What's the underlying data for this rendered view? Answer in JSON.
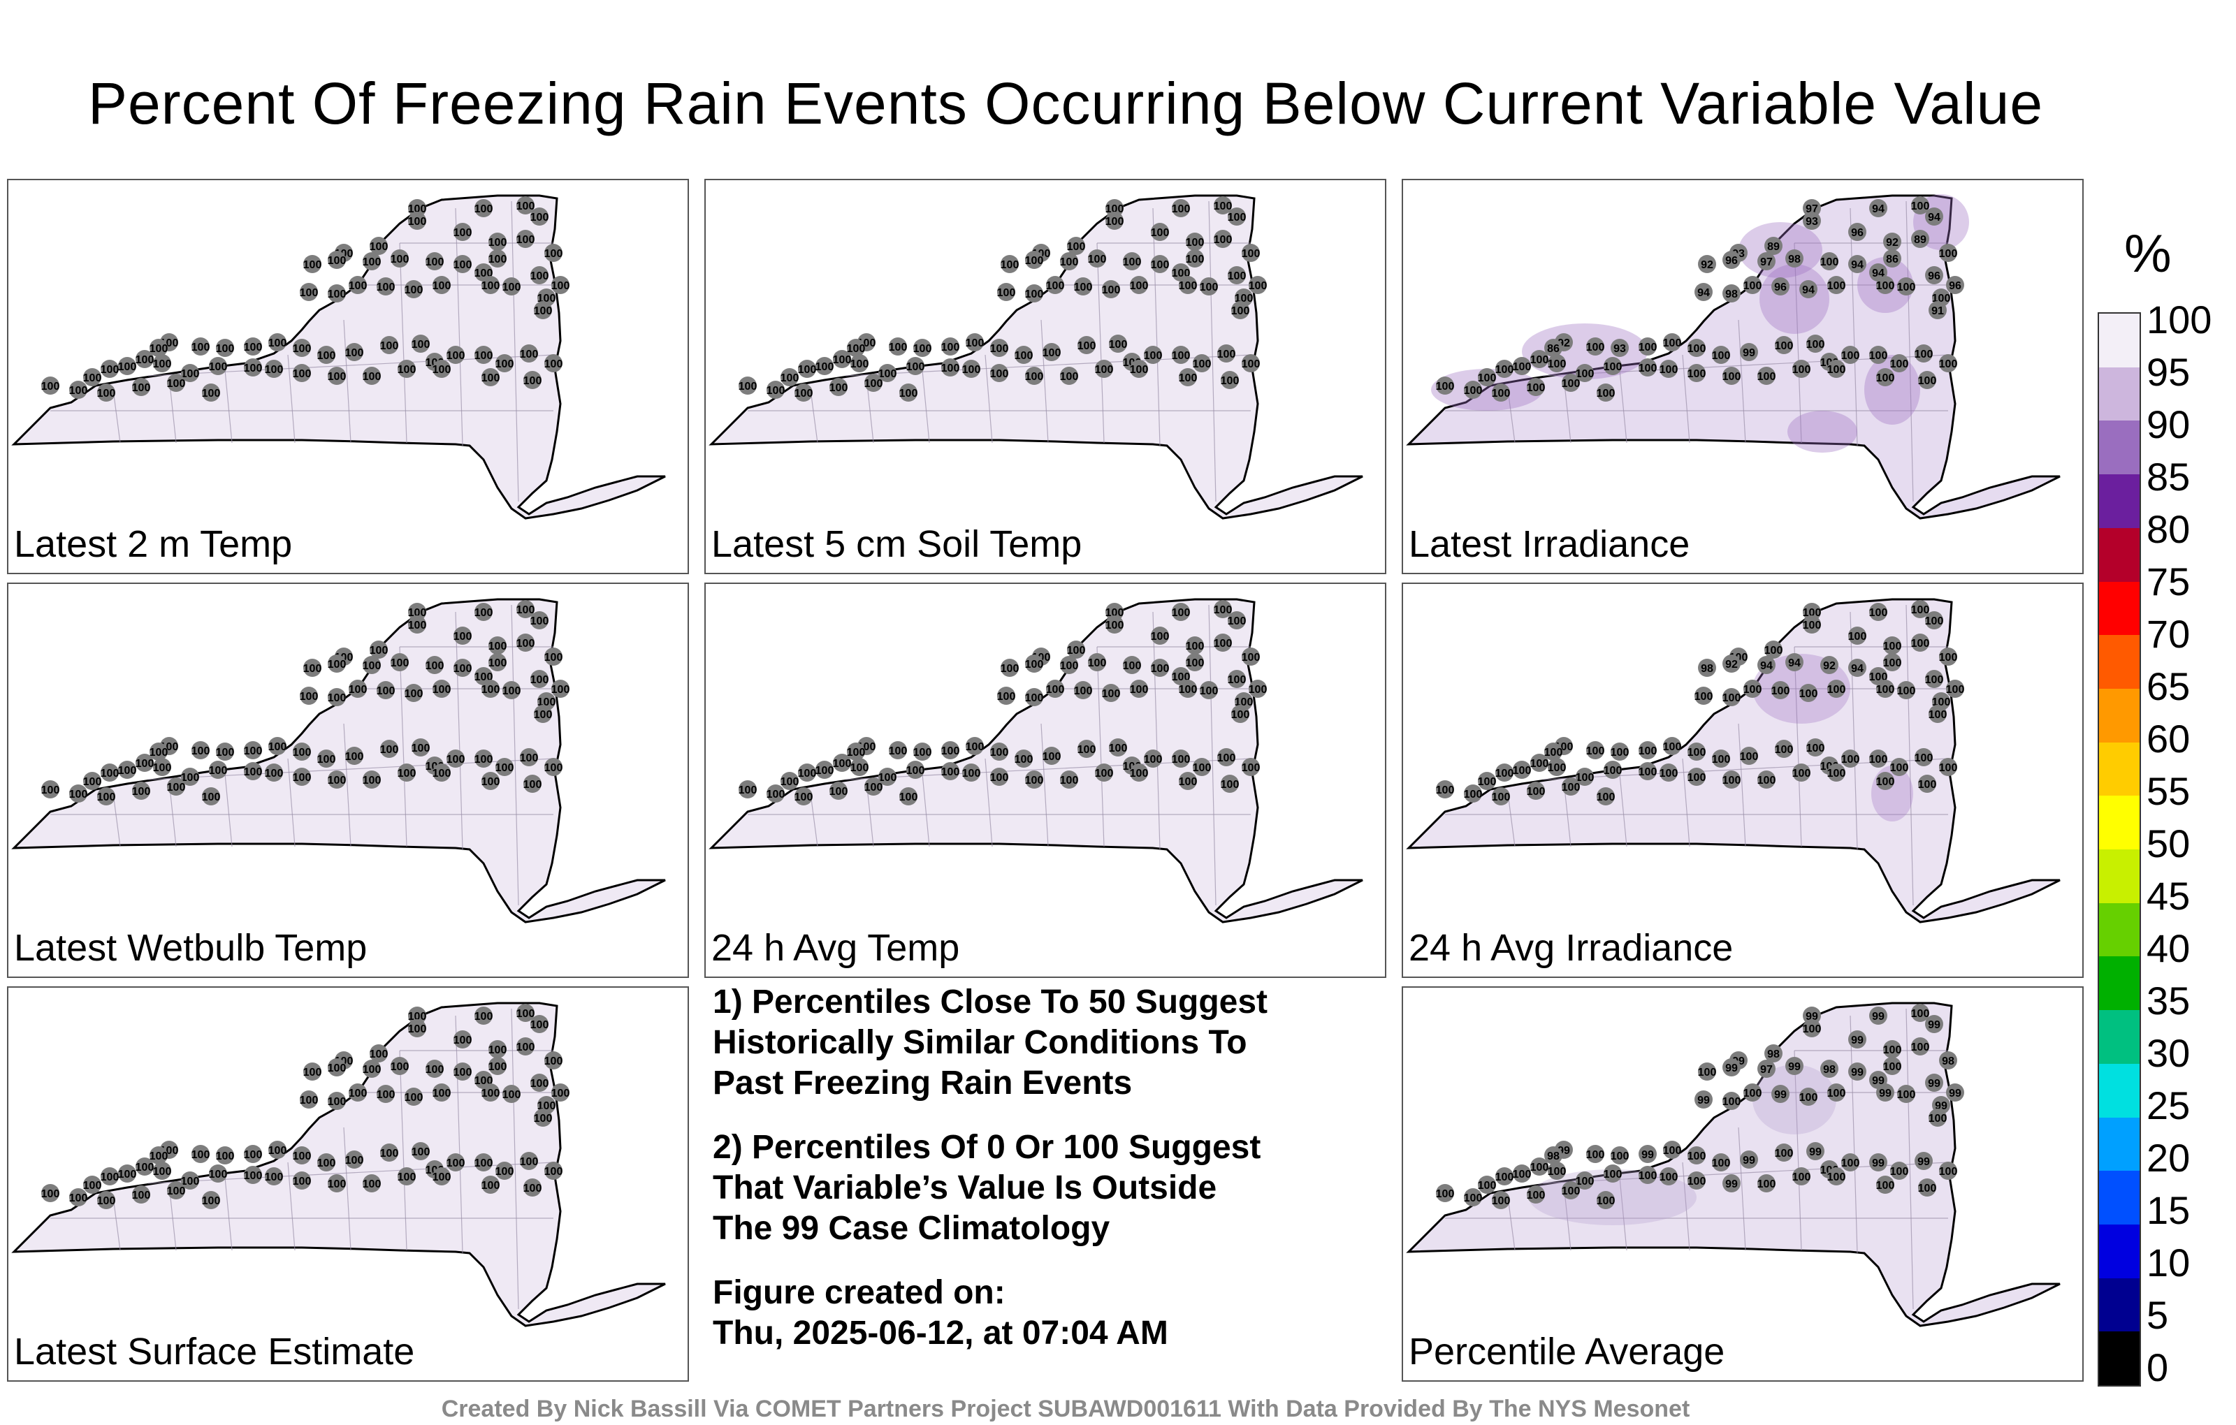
{
  "title": "Percent Of Freezing Rain Events Occurring Below Current Variable Value",
  "panels": [
    {
      "label": "Latest 2 m Temp",
      "shading": "#efe9f4",
      "values": [
        "100",
        "100",
        "100",
        "100",
        "100",
        "100",
        "100",
        "100",
        "100",
        "100",
        "100",
        "100",
        "100",
        "100",
        "100",
        "100",
        "100",
        "100",
        "100",
        "100",
        "100",
        "100",
        "100",
        "100",
        "100",
        "100",
        "100",
        "100",
        "100",
        "100",
        "100",
        "100",
        "100",
        "100",
        "100",
        "100",
        "100",
        "100",
        "100",
        "100",
        "100",
        "100",
        "100",
        "100",
        "100",
        "100",
        "100",
        "100",
        "100",
        "100",
        "100",
        "100",
        "100",
        "100",
        "100",
        "100",
        "100",
        "100",
        "100",
        "100",
        "100",
        "100",
        "100",
        "100",
        "100",
        "100",
        "100",
        "100",
        "100",
        "100"
      ]
    },
    {
      "label": "Latest 5 cm Soil Temp",
      "shading": "#efe9f4",
      "values": [
        "100",
        "100",
        "100",
        "100",
        "100",
        "100",
        "100",
        "100",
        "100",
        "100",
        "100",
        "100",
        "100",
        "100",
        "100",
        "100",
        "100",
        "100",
        "100",
        "100",
        "100",
        "100",
        "100",
        "100",
        "100",
        "100",
        "100",
        "100",
        "100",
        "100",
        "100",
        "100",
        "100",
        "100",
        "100",
        "100",
        "100",
        "100",
        "100",
        "100",
        "100",
        "100",
        "100",
        "100",
        "100",
        "100",
        "100",
        "100",
        "100",
        "100",
        "100",
        "100",
        "100",
        "100",
        "100",
        "100",
        "100",
        "100",
        "100",
        "100",
        "100",
        "100",
        "100",
        "100",
        "100",
        "100",
        "100",
        "100",
        "100",
        "100"
      ]
    },
    {
      "label": "Latest Irradiance",
      "shading": "#e6dcf0",
      "values": [
        "97",
        "93",
        "94",
        "100",
        "94",
        "93",
        "89",
        "96",
        "92",
        "89",
        "100",
        "92",
        "96",
        "97",
        "98",
        "100",
        "94",
        "86",
        "94",
        "96",
        "96",
        "94",
        "98",
        "100",
        "96",
        "94",
        "100",
        "100",
        "100",
        "100",
        "91",
        "92",
        "86",
        "100",
        "100",
        "93",
        "100",
        "100",
        "100",
        "100",
        "99",
        "100",
        "100",
        "100",
        "100",
        "100",
        "100",
        "100",
        "100",
        "100",
        "100",
        "100",
        "100",
        "100",
        "100",
        "100",
        "100",
        "100",
        "100",
        "100",
        "100",
        "100",
        "100",
        "100",
        "100",
        "100",
        "100",
        "100",
        "100",
        "100"
      ]
    },
    {
      "label": "Latest Wetbulb Temp",
      "shading": "#efe9f4",
      "values": [
        "100",
        "100",
        "100",
        "100",
        "100",
        "100",
        "100",
        "100",
        "100",
        "100",
        "100",
        "100",
        "100",
        "100",
        "100",
        "100",
        "100",
        "100",
        "100",
        "100",
        "100",
        "100",
        "100",
        "100",
        "100",
        "100",
        "100",
        "100",
        "100",
        "100",
        "100",
        "100",
        "100",
        "100",
        "100",
        "100",
        "100",
        "100",
        "100",
        "100",
        "100",
        "100",
        "100",
        "100",
        "100",
        "100",
        "100",
        "100",
        "100",
        "100",
        "100",
        "100",
        "100",
        "100",
        "100",
        "100",
        "100",
        "100",
        "100",
        "100",
        "100",
        "100",
        "100",
        "100",
        "100",
        "100",
        "100",
        "100",
        "100",
        "100"
      ]
    },
    {
      "label": "24 h Avg Temp",
      "shading": "#efe9f4",
      "values": [
        "100",
        "100",
        "100",
        "100",
        "100",
        "100",
        "100",
        "100",
        "100",
        "100",
        "100",
        "100",
        "100",
        "100",
        "100",
        "100",
        "100",
        "100",
        "100",
        "100",
        "100",
        "100",
        "100",
        "100",
        "100",
        "100",
        "100",
        "100",
        "100",
        "100",
        "100",
        "100",
        "100",
        "100",
        "100",
        "100",
        "100",
        "100",
        "100",
        "100",
        "100",
        "100",
        "100",
        "100",
        "100",
        "100",
        "100",
        "100",
        "100",
        "100",
        "100",
        "100",
        "100",
        "100",
        "100",
        "100",
        "100",
        "100",
        "100",
        "100",
        "100",
        "100",
        "100",
        "100",
        "100",
        "100",
        "100",
        "100",
        "100",
        "100"
      ]
    },
    {
      "label": "24 h Avg Irradiance",
      "shading": "#ebe3f2",
      "values": [
        "100",
        "100",
        "100",
        "100",
        "100",
        "100",
        "100",
        "100",
        "100",
        "100",
        "100",
        "98",
        "92",
        "94",
        "94",
        "92",
        "94",
        "100",
        "100",
        "100",
        "100",
        "100",
        "100",
        "100",
        "100",
        "100",
        "100",
        "100",
        "100",
        "100",
        "100",
        "100",
        "100",
        "100",
        "100",
        "100",
        "100",
        "100",
        "100",
        "100",
        "100",
        "100",
        "100",
        "100",
        "100",
        "100",
        "100",
        "100",
        "100",
        "100",
        "100",
        "100",
        "100",
        "100",
        "100",
        "100",
        "100",
        "100",
        "100",
        "100",
        "100",
        "100",
        "100",
        "100",
        "100",
        "100",
        "100",
        "100",
        "100",
        "100"
      ]
    },
    {
      "label": "Latest Surface Estimate",
      "shading": "#efe9f4",
      "values": [
        "100",
        "100",
        "100",
        "100",
        "100",
        "100",
        "100",
        "100",
        "100",
        "100",
        "100",
        "100",
        "100",
        "100",
        "100",
        "100",
        "100",
        "100",
        "100",
        "100",
        "100",
        "100",
        "100",
        "100",
        "100",
        "100",
        "100",
        "100",
        "100",
        "100",
        "100",
        "100",
        "100",
        "100",
        "100",
        "100",
        "100",
        "100",
        "100",
        "100",
        "100",
        "100",
        "100",
        "100",
        "100",
        "100",
        "100",
        "100",
        "100",
        "100",
        "100",
        "100",
        "100",
        "100",
        "100",
        "100",
        "100",
        "100",
        "100",
        "100",
        "100",
        "100",
        "100",
        "100",
        "100",
        "100",
        "100",
        "100",
        "100",
        "100"
      ]
    },
    {
      "label": "Percentile Average",
      "shading": "#e9e1f1",
      "values": [
        "99",
        "100",
        "99",
        "100",
        "99",
        "99",
        "98",
        "99",
        "100",
        "100",
        "98",
        "100",
        "99",
        "97",
        "99",
        "98",
        "99",
        "100",
        "99",
        "99",
        "99",
        "99",
        "100",
        "100",
        "99",
        "100",
        "100",
        "99",
        "100",
        "99",
        "100",
        "99",
        "98",
        "100",
        "100",
        "100",
        "99",
        "100",
        "100",
        "100",
        "99",
        "100",
        "99",
        "100",
        "100",
        "99",
        "100",
        "99",
        "100",
        "100",
        "100",
        "100",
        "100",
        "100",
        "100",
        "100",
        "100",
        "100",
        "99",
        "100",
        "100",
        "100",
        "100",
        "100",
        "100",
        "100",
        "100",
        "100",
        "100",
        "100"
      ]
    }
  ],
  "notes": {
    "note1": "1) Percentiles Close To 50 Suggest\nHistorically Similar Conditions To\nPast Freezing Rain Events",
    "note2": "2) Percentiles Of 0 Or 100 Suggest\nThat Variable’s Value Is Outside\nThe 99 Case Climatology",
    "created_label": "Figure created on:",
    "created_date": "Thu, 2025-06-12, at 07:04 AM"
  },
  "colorbar": {
    "unit": "%",
    "ticks": [
      "100",
      "95",
      "90",
      "85",
      "80",
      "75",
      "70",
      "65",
      "60",
      "55",
      "50",
      "45",
      "40",
      "35",
      "30",
      "25",
      "20",
      "15",
      "10",
      "5",
      "0"
    ],
    "stops": [
      "#f3eff7",
      "#cdb6dd",
      "#9a6ebf",
      "#6b1f9e",
      "#b4002a",
      "#ff0000",
      "#ff5a00",
      "#ff9900",
      "#ffcc00",
      "#ffff00",
      "#c8f000",
      "#66d000",
      "#00b000",
      "#00c080",
      "#00e0e0",
      "#00a0ff",
      "#0050ff",
      "#0000e0",
      "#000090",
      "#000000"
    ]
  },
  "footer": "Created By Nick Bassill Via COMET Partners Project SUBAWD001611 With Data Provided By The NYS Mesonet"
}
